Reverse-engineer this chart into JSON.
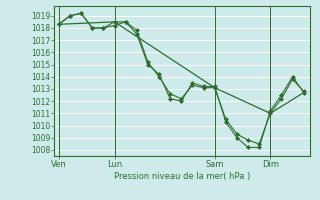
{
  "bg_color": "#ceeaea",
  "grid_color": "#b8d8d8",
  "line_color_dark": "#2d6e2d",
  "ylabel": "Pression niveau de la mer( hPa )",
  "ylim": [
    1007.5,
    1019.8
  ],
  "yticks": [
    1008,
    1009,
    1010,
    1011,
    1012,
    1013,
    1014,
    1015,
    1016,
    1017,
    1018,
    1019
  ],
  "xtick_labels": [
    "Ven",
    "Lun",
    "Sam",
    "Dim"
  ],
  "xtick_positions": [
    0,
    2.5,
    7.0,
    9.5
  ],
  "vline_positions": [
    0,
    2.5,
    7.0,
    9.5
  ],
  "series1_x": [
    0.0,
    0.5,
    1.0,
    1.5,
    2.0,
    2.5,
    3.0,
    3.5,
    4.0,
    4.5,
    5.0,
    5.5,
    6.0,
    6.5,
    7.0,
    7.5,
    8.0,
    8.5,
    9.0,
    9.5,
    10.0,
    10.5,
    11.0
  ],
  "series1_y": [
    1018.3,
    1019.0,
    1019.2,
    1018.0,
    1018.0,
    1018.2,
    1018.5,
    1017.8,
    1015.2,
    1014.0,
    1012.6,
    1012.2,
    1013.3,
    1013.1,
    1013.1,
    1010.5,
    1009.3,
    1008.8,
    1008.5,
    1011.0,
    1012.2,
    1013.8,
    1012.8
  ],
  "series2_x": [
    0.0,
    0.5,
    1.0,
    1.5,
    2.0,
    2.5,
    3.0,
    3.5,
    4.0,
    4.5,
    5.0,
    5.5,
    6.0,
    6.5,
    7.0,
    7.5,
    8.0,
    8.5,
    9.0,
    9.5,
    10.0,
    10.5,
    11.0
  ],
  "series2_y": [
    1018.3,
    1019.0,
    1019.2,
    1018.0,
    1018.0,
    1018.5,
    1018.5,
    1017.5,
    1015.0,
    1014.2,
    1012.2,
    1012.0,
    1013.5,
    1013.2,
    1013.2,
    1010.3,
    1009.0,
    1008.2,
    1008.2,
    1011.2,
    1012.5,
    1014.0,
    1012.7
  ],
  "series3_x": [
    0.0,
    2.5,
    7.0,
    9.5,
    11.0
  ],
  "series3_y": [
    1018.3,
    1018.5,
    1013.1,
    1011.0,
    1012.7
  ],
  "xlim": [
    -0.2,
    11.3
  ]
}
